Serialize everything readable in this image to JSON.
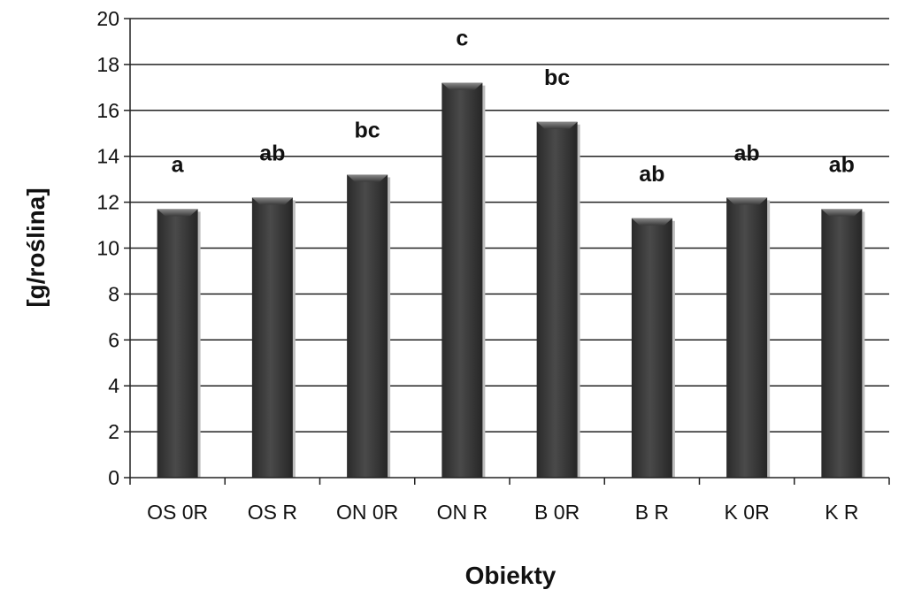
{
  "chart_data": {
    "type": "bar",
    "title": "",
    "xlabel": "Obiekty",
    "ylabel": "[g/roślina]",
    "ylim": [
      0,
      20
    ],
    "yticks": [
      0,
      2,
      4,
      6,
      8,
      10,
      12,
      14,
      16,
      18,
      20
    ],
    "grid": true,
    "legend": "none",
    "categories": [
      "OS 0R",
      "OS R",
      "ON 0R",
      "ON R",
      "B 0R",
      "B R",
      "K 0R",
      "K R"
    ],
    "values": [
      11.7,
      12.2,
      13.2,
      17.2,
      15.5,
      11.3,
      12.2,
      11.7
    ],
    "annotations": [
      "a",
      "ab",
      "bc",
      "c",
      "bc",
      "ab",
      "ab",
      "ab"
    ],
    "bar_color": "#3a3a3a"
  }
}
